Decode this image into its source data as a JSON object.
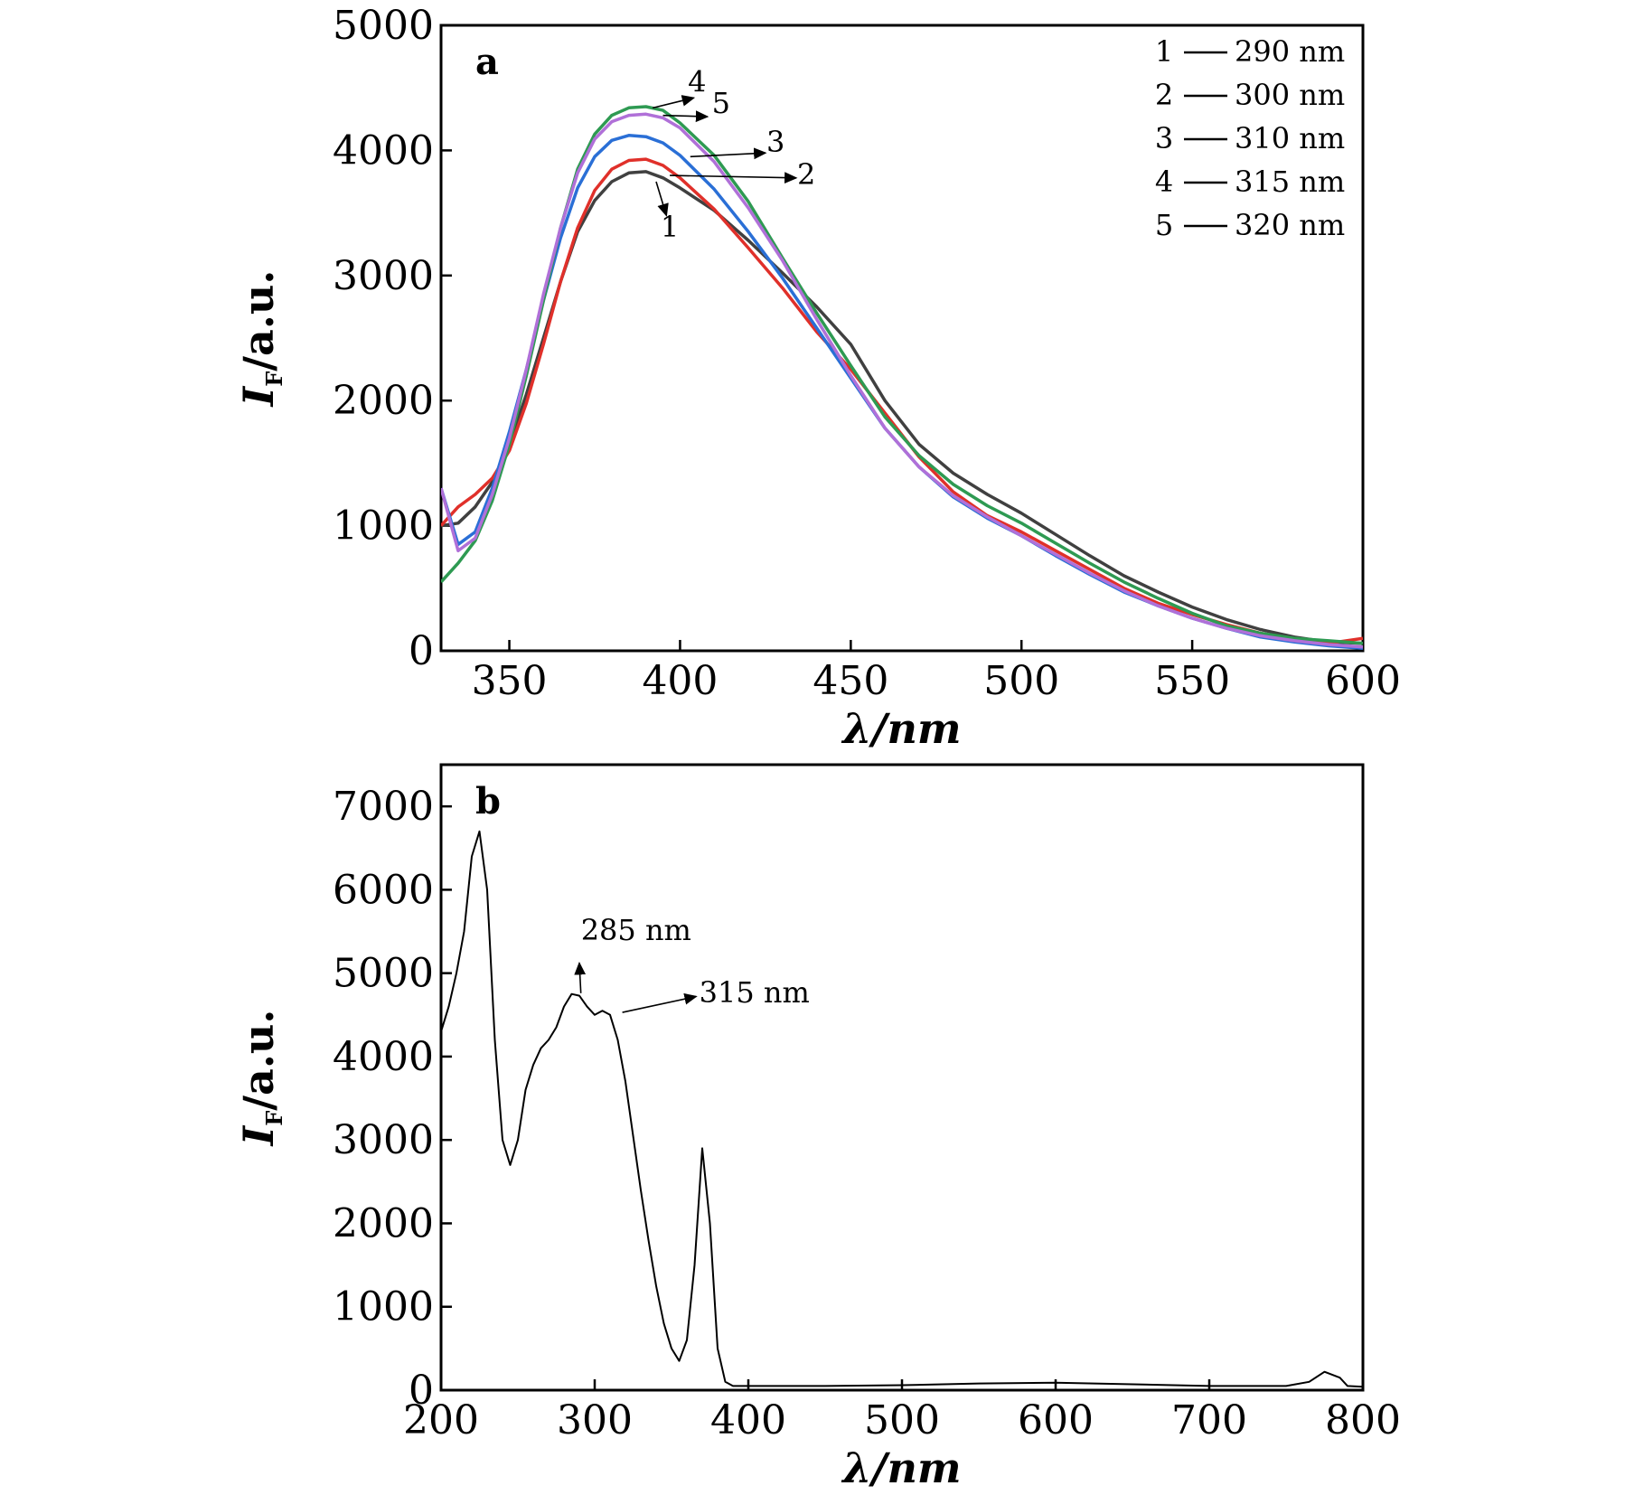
{
  "chart_data": [
    {
      "panel": "a",
      "type": "line",
      "xlabel": "λ/nm",
      "ylabel_main": "I",
      "ylabel_sub": "F",
      "ylabel_rest": "/a.u.",
      "xlim": [
        330,
        600
      ],
      "ylim": [
        0,
        5000
      ],
      "xticks": [
        350,
        400,
        450,
        500,
        550,
        600
      ],
      "yticks": [
        0,
        1000,
        2000,
        3000,
        4000,
        5000
      ],
      "grid": false,
      "legend_position": "top-right",
      "legend": [
        {
          "id": "1",
          "label": "290 nm"
        },
        {
          "id": "2",
          "label": "300 nm"
        },
        {
          "id": "3",
          "label": "310 nm"
        },
        {
          "id": "4",
          "label": "315 nm"
        },
        {
          "id": "5",
          "label": "320 nm"
        }
      ],
      "series": [
        {
          "id": "1",
          "color": "#404040",
          "x": [
            330,
            335,
            340,
            345,
            350,
            355,
            360,
            365,
            370,
            375,
            380,
            385,
            390,
            395,
            400,
            410,
            420,
            430,
            440,
            450,
            460,
            470,
            480,
            490,
            500,
            510,
            520,
            530,
            540,
            550,
            560,
            570,
            580,
            590,
            600
          ],
          "y": [
            1000,
            1020,
            1150,
            1350,
            1650,
            2050,
            2500,
            2950,
            3350,
            3600,
            3750,
            3820,
            3830,
            3780,
            3700,
            3520,
            3280,
            3020,
            2750,
            2450,
            2000,
            1650,
            1420,
            1250,
            1100,
            930,
            760,
            600,
            470,
            350,
            250,
            170,
            110,
            70,
            60
          ]
        },
        {
          "id": "2",
          "color": "#e0302a",
          "x": [
            330,
            335,
            340,
            345,
            350,
            355,
            360,
            365,
            370,
            375,
            380,
            385,
            390,
            395,
            400,
            410,
            420,
            430,
            440,
            450,
            460,
            470,
            480,
            490,
            500,
            510,
            520,
            530,
            540,
            550,
            560,
            570,
            580,
            590,
            600
          ],
          "y": [
            1000,
            1150,
            1250,
            1380,
            1600,
            1980,
            2450,
            2950,
            3380,
            3680,
            3850,
            3920,
            3930,
            3880,
            3780,
            3530,
            3220,
            2900,
            2550,
            2250,
            1900,
            1550,
            1270,
            1080,
            950,
            800,
            650,
            500,
            380,
            290,
            210,
            140,
            90,
            60,
            100
          ]
        },
        {
          "id": "3",
          "color": "#2a6fd6",
          "x": [
            330,
            335,
            340,
            345,
            350,
            355,
            360,
            365,
            370,
            375,
            380,
            385,
            390,
            395,
            400,
            410,
            420,
            430,
            440,
            450,
            460,
            470,
            480,
            490,
            500,
            510,
            520,
            530,
            540,
            550,
            560,
            570,
            580,
            590,
            600
          ],
          "y": [
            1300,
            850,
            950,
            1300,
            1750,
            2250,
            2800,
            3300,
            3700,
            3950,
            4080,
            4120,
            4110,
            4060,
            3960,
            3690,
            3350,
            2980,
            2580,
            2180,
            1780,
            1470,
            1230,
            1060,
            920,
            760,
            610,
            470,
            360,
            260,
            180,
            110,
            70,
            40,
            20
          ]
        },
        {
          "id": "4",
          "color": "#2e9a52",
          "x": [
            330,
            335,
            340,
            345,
            350,
            355,
            360,
            365,
            370,
            375,
            380,
            385,
            390,
            395,
            400,
            410,
            420,
            430,
            440,
            450,
            460,
            470,
            480,
            490,
            500,
            510,
            520,
            530,
            540,
            550,
            560,
            570,
            580,
            590,
            600
          ],
          "y": [
            550,
            700,
            880,
            1200,
            1650,
            2200,
            2800,
            3380,
            3850,
            4130,
            4280,
            4340,
            4350,
            4320,
            4220,
            3960,
            3590,
            3140,
            2700,
            2280,
            1870,
            1560,
            1330,
            1160,
            1020,
            860,
            700,
            550,
            420,
            300,
            200,
            140,
            100,
            80,
            60
          ]
        },
        {
          "id": "5",
          "color": "#b070d8",
          "x": [
            330,
            335,
            340,
            345,
            350,
            355,
            360,
            365,
            370,
            375,
            380,
            385,
            390,
            395,
            400,
            410,
            420,
            430,
            440,
            450,
            460,
            470,
            480,
            490,
            500,
            510,
            520,
            530,
            540,
            550,
            560,
            570,
            580,
            590,
            600
          ],
          "y": [
            1300,
            800,
            900,
            1250,
            1700,
            2250,
            2850,
            3380,
            3820,
            4090,
            4230,
            4280,
            4290,
            4260,
            4180,
            3910,
            3540,
            3120,
            2650,
            2200,
            1780,
            1470,
            1240,
            1070,
            920,
            770,
            620,
            480,
            360,
            260,
            180,
            120,
            80,
            50,
            30
          ]
        }
      ],
      "curve_labels": [
        {
          "text": "4",
          "x": 405,
          "y": 4470
        },
        {
          "text": "5",
          "x": 412,
          "y": 4300
        },
        {
          "text": "3",
          "x": 428,
          "y": 3990
        },
        {
          "text": "2",
          "x": 437,
          "y": 3730
        },
        {
          "text": "1",
          "x": 397,
          "y": 3310
        }
      ]
    },
    {
      "panel": "b",
      "type": "line",
      "xlabel": "λ/nm",
      "ylabel_main": "I",
      "ylabel_sub": "F",
      "ylabel_rest": "/a.u.",
      "xlim": [
        200,
        800
      ],
      "ylim": [
        0,
        7500
      ],
      "xticks": [
        200,
        300,
        400,
        500,
        600,
        700,
        800
      ],
      "yticks": [
        0,
        1000,
        2000,
        3000,
        4000,
        5000,
        6000,
        7000
      ],
      "grid": false,
      "series": [
        {
          "color": "#000000",
          "x": [
            200,
            205,
            210,
            215,
            220,
            225,
            230,
            235,
            240,
            245,
            250,
            255,
            260,
            265,
            270,
            275,
            280,
            285,
            290,
            295,
            300,
            305,
            310,
            315,
            320,
            325,
            330,
            335,
            340,
            345,
            350,
            355,
            360,
            365,
            370,
            375,
            380,
            385,
            390,
            395,
            400,
            405,
            410,
            450,
            500,
            550,
            600,
            650,
            700,
            750,
            765,
            775,
            785,
            790,
            800
          ],
          "y": [
            4300,
            4600,
            5000,
            5500,
            6400,
            6700,
            6000,
            4200,
            3000,
            2700,
            3000,
            3600,
            3900,
            4100,
            4200,
            4350,
            4600,
            4750,
            4730,
            4600,
            4500,
            4550,
            4500,
            4200,
            3700,
            3050,
            2400,
            1800,
            1250,
            800,
            500,
            350,
            600,
            1500,
            2900,
            2000,
            500,
            100,
            50,
            50,
            50,
            50,
            50,
            50,
            60,
            80,
            90,
            70,
            50,
            50,
            100,
            220,
            150,
            50,
            40
          ]
        }
      ],
      "annotations": [
        {
          "text": "285 nm",
          "x": 291,
          "y": 5400
        },
        {
          "text": "315 nm",
          "x": 368,
          "y": 4650
        }
      ]
    }
  ]
}
